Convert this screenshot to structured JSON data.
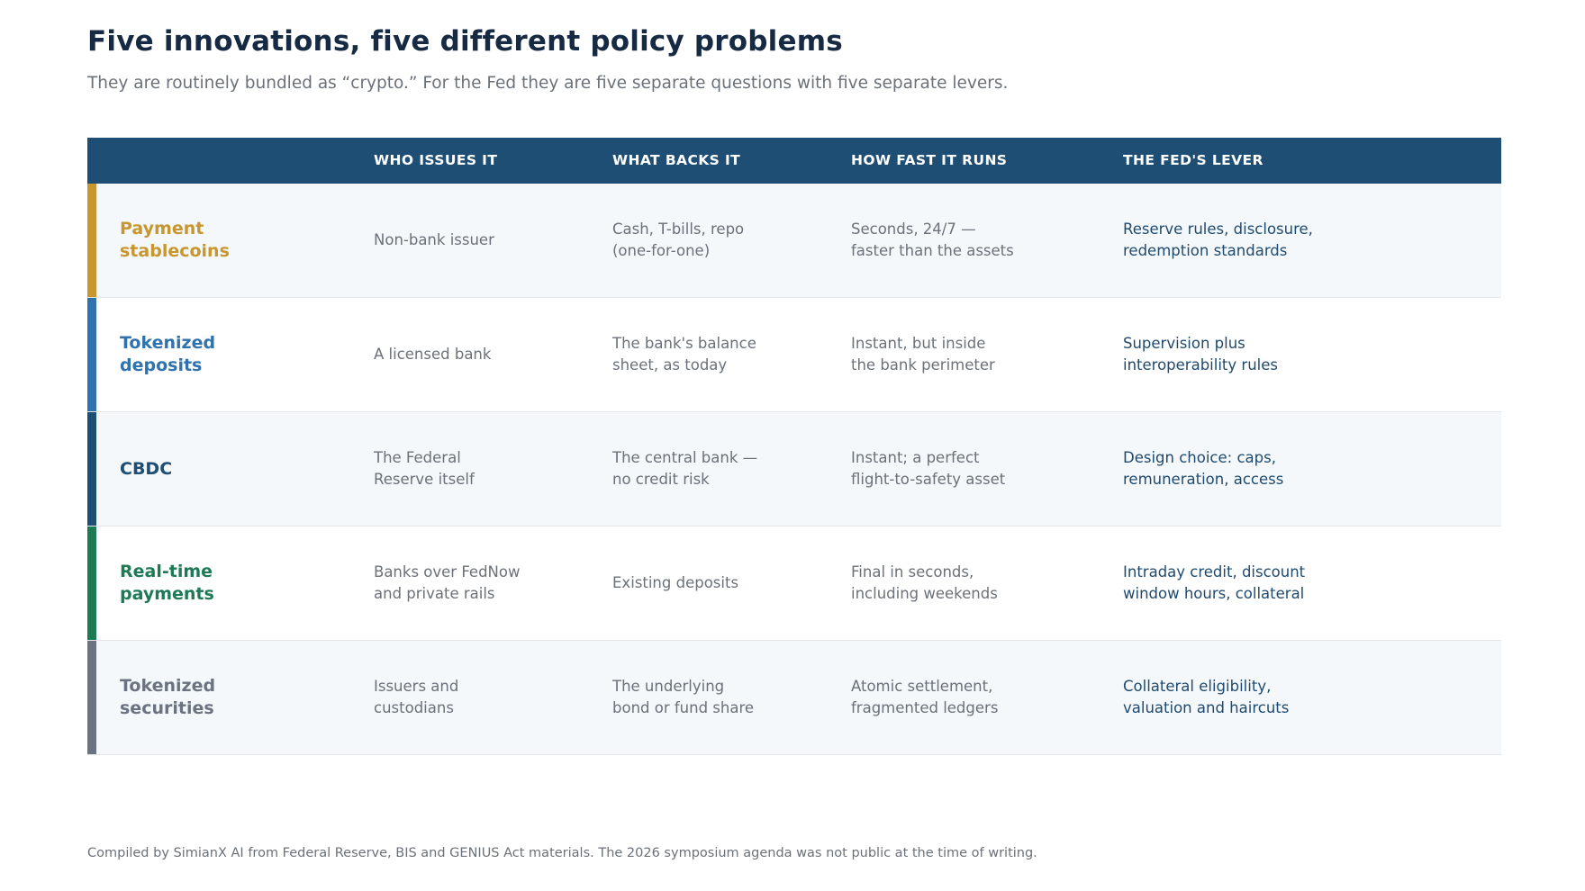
{
  "title": "Five innovations, five different policy problems",
  "subtitle": "They are routinely bundled as “crypto.” For the Fed they are five separate questions with five separate levers.",
  "table": {
    "headers": [
      "",
      "WHO ISSUES IT",
      "WHAT BACKS IT",
      "HOW FAST IT RUNS",
      "THE FED'S LEVER"
    ],
    "rows": [
      {
        "name": "Payment\nstablecoins",
        "color": "#c8962f",
        "issuer": "Non-bank issuer",
        "backing": "Cash, T-bills, repo\n(one-for-one)",
        "speed": "Seconds, 24/7 —\nfaster than the assets",
        "lever": "Reserve rules, disclosure,\nredemption standards"
      },
      {
        "name": "Tokenized\ndeposits",
        "color": "#2f72ad",
        "issuer": "A licensed bank",
        "backing": "The bank's balance\nsheet, as today",
        "speed": "Instant, but inside\nthe bank perimeter",
        "lever": "Supervision plus\ninteroperability rules"
      },
      {
        "name": "CBDC",
        "color": "#1f4e75",
        "issuer": "The Federal\nReserve itself",
        "backing": "The central bank —\nno credit risk",
        "speed": "Instant; a perfect\nflight-to-safety asset",
        "lever": "Design choice: caps,\nremuneration, access"
      },
      {
        "name": "Real-time\npayments",
        "color": "#1e7a55",
        "issuer": "Banks over FedNow\nand private rails",
        "backing": "Existing deposits",
        "speed": "Final in seconds,\nincluding weekends",
        "lever": "Intraday credit, discount\nwindow hours, collateral"
      },
      {
        "name": "Tokenized\nsecurities",
        "color": "#6b7280",
        "issuer": "Issuers and\ncustodians",
        "backing": "The underlying\nbond or fund share",
        "speed": "Atomic settlement,\nfragmented ledgers",
        "lever": "Collateral eligibility,\nvaluation and haircuts"
      }
    ]
  },
  "footer": "Compiled by SimianX AI from Federal Reserve, BIS and GENIUS Act materials. The 2026 symposium agenda was not public at the time of writing."
}
